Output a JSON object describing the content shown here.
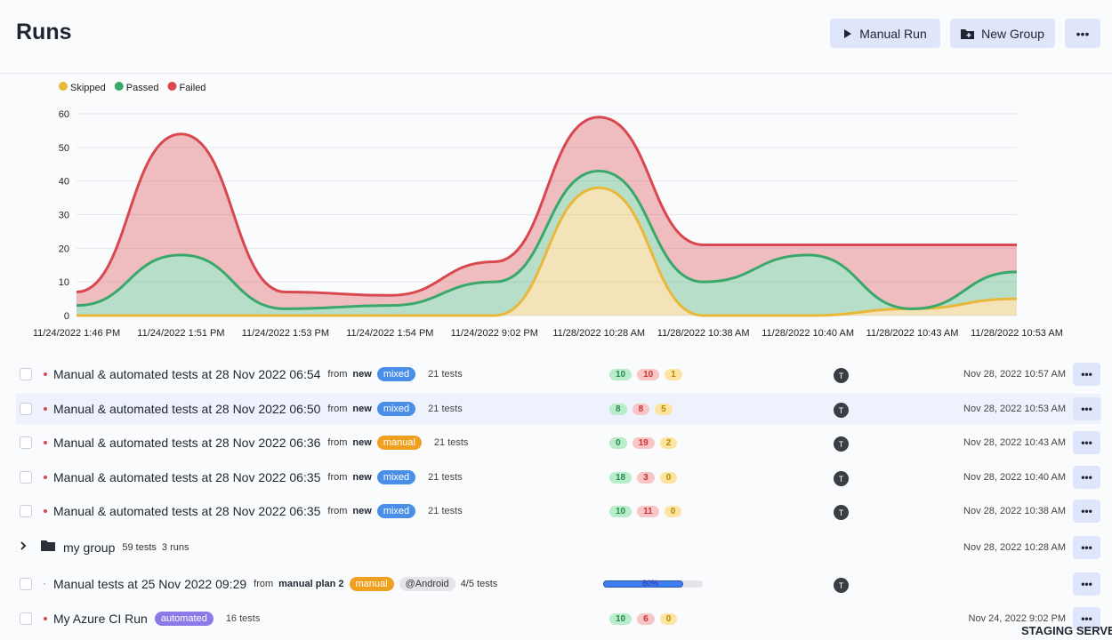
{
  "header": {
    "title": "Runs",
    "buttons": [
      "Manual Run",
      "New Group"
    ]
  },
  "chart_data": {
    "type": "area",
    "stacked": true,
    "categories": [
      "11/24/2022 1:46 PM",
      "11/24/2022 1:51 PM",
      "11/24/2022 1:53 PM",
      "11/24/2022 1:54 PM",
      "11/24/2022 9:02 PM",
      "11/28/2022 10:28 AM",
      "11/28/2022 10:38 AM",
      "11/28/2022 10:40 AM",
      "11/28/2022 10:43 AM",
      "11/28/2022 10:53 AM"
    ],
    "series": [
      {
        "name": "Skipped",
        "color": "#e8b83a",
        "values": [
          0,
          0,
          0,
          0,
          0,
          38,
          0,
          0,
          2,
          5
        ]
      },
      {
        "name": "Passed",
        "color": "#3aa86a",
        "values": [
          3,
          18,
          2,
          3,
          10,
          5,
          10,
          18,
          0,
          8
        ]
      },
      {
        "name": "Failed",
        "color": "#d9474f",
        "values": [
          4,
          36,
          5,
          3,
          6,
          16,
          11,
          3,
          19,
          8
        ]
      }
    ],
    "ylim": [
      0,
      60
    ],
    "yticks": [
      0,
      10,
      20,
      30,
      40,
      50,
      60
    ],
    "grid": true,
    "legend": "top-left"
  },
  "runs": [
    {
      "title": "Manual & automated tests at 28 Nov 2022 06:54",
      "from": "from",
      "source": "new",
      "tag": "mixed",
      "tests": "21 tests",
      "passed": 10,
      "failed": 10,
      "skipped": 1,
      "user": "T",
      "date": "Nov 28, 2022 10:57 AM"
    },
    {
      "title": "Manual & automated tests at 28 Nov 2022 06:50",
      "from": "from",
      "source": "new",
      "tag": "mixed",
      "tests": "21 tests",
      "passed": 8,
      "failed": 8,
      "skipped": 5,
      "user": "T",
      "date": "Nov 28, 2022 10:53 AM"
    },
    {
      "title": "Manual & automated tests at 28 Nov 2022 06:36",
      "from": "from",
      "source": "new",
      "tag": "manual",
      "tests": "21 tests",
      "passed": 0,
      "failed": 19,
      "skipped": 2,
      "user": "T",
      "date": "Nov 28, 2022 10:43 AM"
    },
    {
      "title": "Manual & automated tests at 28 Nov 2022 06:35",
      "from": "from",
      "source": "new",
      "tag": "mixed",
      "tests": "21 tests",
      "passed": 18,
      "failed": 3,
      "skipped": 0,
      "user": "T",
      "date": "Nov 28, 2022 10:40 AM"
    },
    {
      "title": "Manual & automated tests at 28 Nov 2022 06:35",
      "from": "from",
      "source": "new",
      "tag": "mixed",
      "tests": "21 tests",
      "passed": 10,
      "failed": 11,
      "skipped": 0,
      "user": "T",
      "date": "Nov 28, 2022 10:38 AM"
    }
  ],
  "group": {
    "name": "my group",
    "tests": "59 tests",
    "runs": "3 runs",
    "date": "Nov 28, 2022 10:28 AM"
  },
  "manual_run": {
    "title": "Manual tests at 25 Nov 2022 09:29",
    "from": "from",
    "source": "manual plan 2",
    "tag": "manual",
    "label": "@Android",
    "tests": "4/5 tests",
    "progress": 80,
    "progress_label": "80%",
    "user": "T"
  },
  "azure_run": {
    "title": "My Azure CI Run",
    "tag": "automated",
    "tests": "16 tests",
    "passed": 10,
    "failed": 6,
    "skipped": 0,
    "date": "Nov 24, 2022 9:02 PM"
  },
  "footer": "STAGING SERVER"
}
